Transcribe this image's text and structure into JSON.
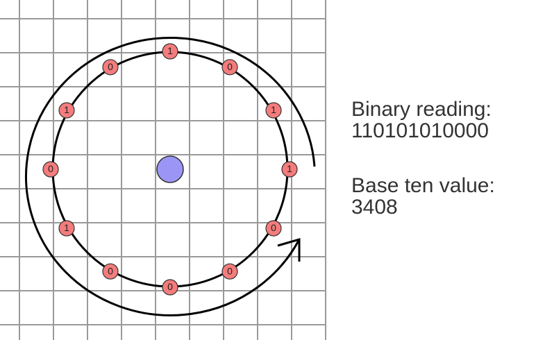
{
  "colors": {
    "grid": "#999999",
    "circle": "#000000",
    "bead_fill": "#f47c7c",
    "bead_stroke": "#333333",
    "center_fill": "#9b96f5",
    "text": "#333333"
  },
  "beads": [
    "1",
    "0",
    "1",
    "1",
    "0",
    "0",
    "0",
    "0",
    "1",
    "0",
    "1",
    "0"
  ],
  "readout": {
    "binary_label": "Binary reading:",
    "binary_value": "110101010000",
    "decimal_label": "Base ten value:",
    "decimal_value": "3408"
  },
  "icons": {
    "rotation_arrow": "clockwise-arrow-icon"
  }
}
